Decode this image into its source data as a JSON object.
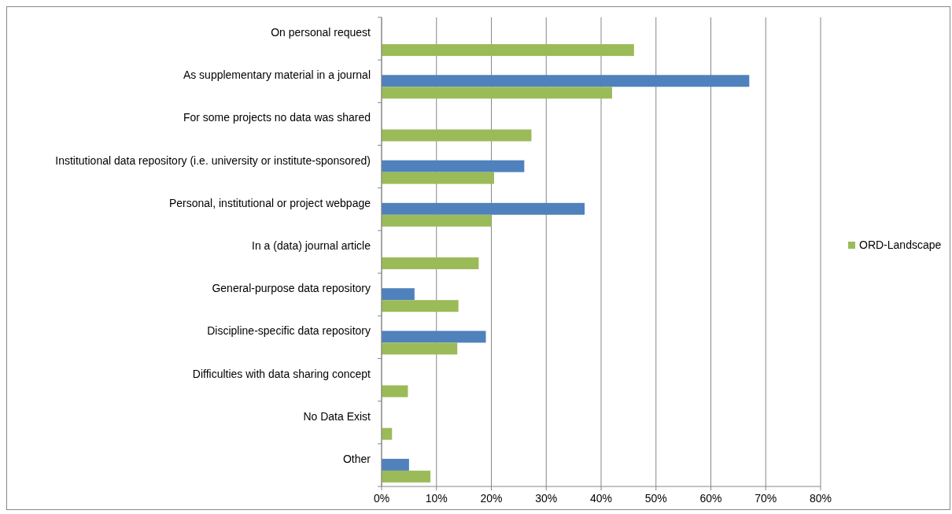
{
  "chart_data": {
    "type": "bar",
    "orientation": "horizontal",
    "categories": [
      "On personal request",
      "As supplementary material in a journal",
      "For some projects no data was shared",
      "Institutional data repository (i.e. university or institute-sponsored)",
      "Personal, institutional or project webpage",
      "In a (data) journal article",
      "General-purpose data repository",
      "Discipline-specific data repository",
      "Difficulties with data sharing concept",
      "No Data Exist",
      "Other"
    ],
    "series": [
      {
        "color": "#4f81bd",
        "values": [
          null,
          67,
          null,
          26,
          37,
          null,
          6,
          19,
          null,
          null,
          5
        ]
      },
      {
        "name": "ORD-Landscape",
        "color": "#9bbb59",
        "values": [
          46,
          42,
          27.3,
          20.5,
          20,
          17.7,
          14,
          13.8,
          4.8,
          1.9,
          8.9
        ]
      }
    ],
    "xlim": [
      0,
      80
    ],
    "xticks": [
      {
        "value": 0,
        "label": "0%"
      },
      {
        "value": 10,
        "label": "10%"
      },
      {
        "value": 20,
        "label": "20%"
      },
      {
        "value": 30,
        "label": "30%"
      },
      {
        "value": 40,
        "label": "40%"
      },
      {
        "value": 50,
        "label": "50%"
      },
      {
        "value": 60,
        "label": "60%"
      },
      {
        "value": 70,
        "label": "70%"
      },
      {
        "value": 80,
        "label": "80%"
      }
    ],
    "grid": "x",
    "legend": "right"
  }
}
